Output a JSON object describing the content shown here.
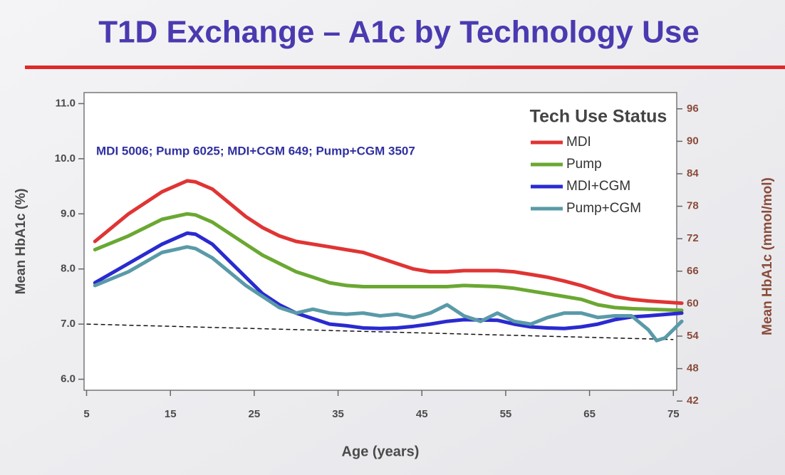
{
  "chart_data": {
    "type": "line",
    "title": "T1D Exchange – A1c by Technology Use",
    "annotation": "MDI 5006; Pump 6025; MDI+CGM 649; Pump+CGM 3507",
    "legend_title": "Tech Use Status",
    "legend": "top-right",
    "xlabel": "Age (years)",
    "ylabel": "Mean HbA1c (%)",
    "y2label": "Mean HbA1c (mmol/mol)",
    "xlim": [
      4.7,
      75.4
    ],
    "xticks": [
      5,
      15,
      25,
      35,
      45,
      55,
      65,
      75
    ],
    "ylim": [
      5.8,
      11.2
    ],
    "yticks": [
      {
        "value": 6,
        "label": "6.0"
      },
      {
        "value": 7,
        "label": "7.0"
      },
      {
        "value": 8,
        "label": "8.0"
      },
      {
        "value": 9,
        "label": "9.0"
      },
      {
        "value": 10,
        "label": "10.0"
      },
      {
        "value": 11,
        "label": "11.0"
      }
    ],
    "y2lim": [
      44,
      99
    ],
    "y2ticks": [
      42,
      48,
      54,
      60,
      66,
      72,
      78,
      84,
      90,
      96
    ],
    "reference_line": {
      "x": [
        5,
        75
      ],
      "values": [
        7.0,
        6.72
      ],
      "color": "#111111"
    },
    "series": [
      {
        "name": "MDI",
        "color": "#e03434",
        "x": [
          6,
          10,
          14,
          17,
          18,
          20,
          22,
          24,
          26,
          28,
          30,
          34,
          36,
          38,
          40,
          42,
          44,
          46,
          48,
          50,
          54,
          56,
          58,
          60,
          62,
          64,
          66,
          68,
          70,
          72,
          76
        ],
        "values": [
          8.5,
          9.0,
          9.4,
          9.6,
          9.58,
          9.45,
          9.2,
          8.95,
          8.75,
          8.6,
          8.5,
          8.4,
          8.35,
          8.3,
          8.2,
          8.1,
          8.0,
          7.95,
          7.95,
          7.97,
          7.97,
          7.95,
          7.9,
          7.85,
          7.78,
          7.7,
          7.6,
          7.5,
          7.45,
          7.42,
          7.38
        ]
      },
      {
        "name": "Pump",
        "color": "#6aa832",
        "x": [
          6,
          10,
          14,
          17,
          18,
          20,
          22,
          24,
          26,
          28,
          30,
          32,
          34,
          36,
          38,
          40,
          44,
          48,
          50,
          54,
          56,
          58,
          60,
          62,
          64,
          66,
          68,
          70,
          76
        ],
        "values": [
          8.35,
          8.6,
          8.9,
          9.0,
          8.98,
          8.85,
          8.65,
          8.45,
          8.25,
          8.1,
          7.95,
          7.85,
          7.75,
          7.7,
          7.68,
          7.68,
          7.68,
          7.68,
          7.7,
          7.68,
          7.65,
          7.6,
          7.55,
          7.5,
          7.45,
          7.35,
          7.3,
          7.28,
          7.25
        ]
      },
      {
        "name": "MDI+CGM",
        "color": "#2a2ad0",
        "x": [
          6,
          10,
          14,
          17,
          18,
          20,
          22,
          24,
          26,
          28,
          30,
          32,
          34,
          36,
          38,
          40,
          42,
          44,
          46,
          48,
          50,
          54,
          56,
          58,
          60,
          62,
          64,
          66,
          68,
          70,
          72,
          76
        ],
        "values": [
          7.75,
          8.1,
          8.45,
          8.65,
          8.63,
          8.45,
          8.15,
          7.85,
          7.55,
          7.35,
          7.2,
          7.1,
          7.0,
          6.97,
          6.93,
          6.92,
          6.93,
          6.96,
          7.0,
          7.05,
          7.08,
          7.07,
          7.0,
          6.95,
          6.93,
          6.92,
          6.95,
          7.0,
          7.08,
          7.13,
          7.15,
          7.2
        ]
      },
      {
        "name": "Pump+CGM",
        "color": "#5a9aa8",
        "x": [
          6,
          10,
          14,
          17,
          18,
          20,
          22,
          24,
          26,
          28,
          30,
          32,
          34,
          36,
          38,
          40,
          42,
          44,
          46,
          48,
          50,
          52,
          54,
          56,
          58,
          60,
          62,
          64,
          66,
          68,
          70,
          72,
          73,
          74,
          76
        ],
        "values": [
          7.7,
          7.95,
          8.3,
          8.4,
          8.37,
          8.2,
          7.95,
          7.7,
          7.5,
          7.3,
          7.2,
          7.27,
          7.2,
          7.18,
          7.2,
          7.15,
          7.18,
          7.12,
          7.2,
          7.35,
          7.15,
          7.05,
          7.2,
          7.05,
          7.0,
          7.12,
          7.2,
          7.2,
          7.12,
          7.15,
          7.15,
          6.9,
          6.7,
          6.75,
          7.05
        ]
      }
    ]
  }
}
